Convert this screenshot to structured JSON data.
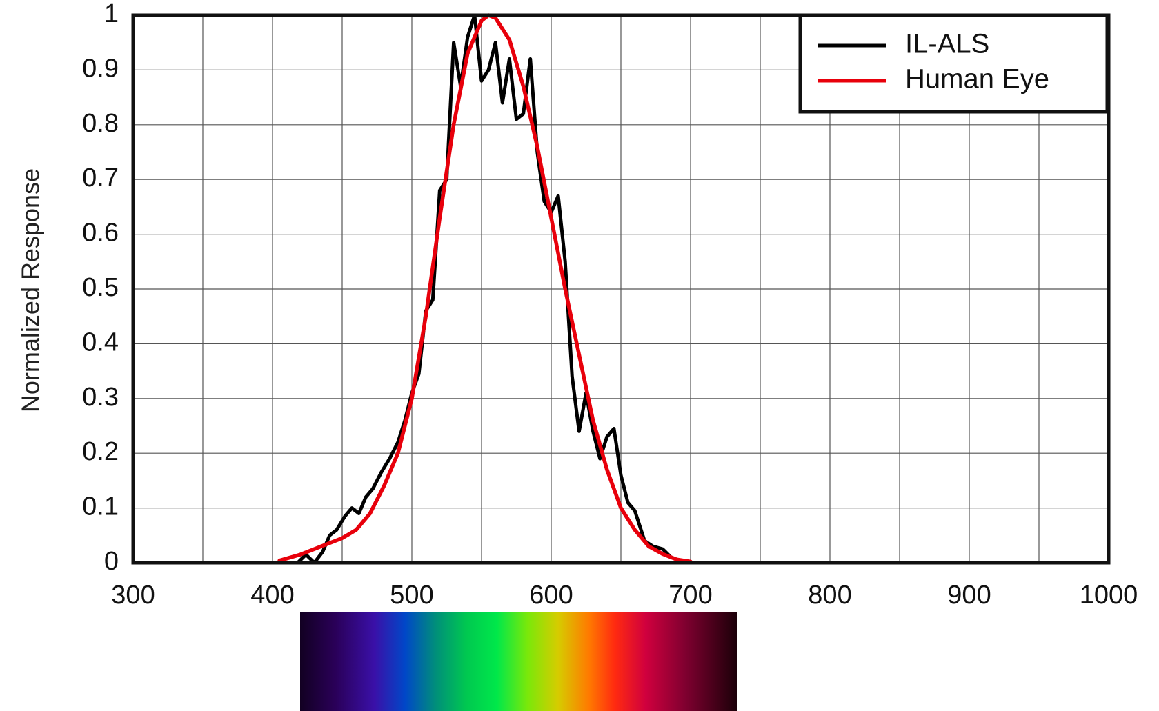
{
  "chart_data": {
    "type": "line",
    "title": "",
    "xlabel": "",
    "ylabel": "Normalized Response",
    "xlim": [
      300,
      1000
    ],
    "ylim": [
      0,
      1
    ],
    "grid": true,
    "legend": "top-right",
    "x_ticks": [
      "300",
      "400",
      "500",
      "600",
      "700",
      "800",
      "900",
      "1000"
    ],
    "y_ticks": [
      "0",
      "0.1",
      "0.2",
      "0.3",
      "0.4",
      "0.5",
      "0.6",
      "0.7",
      "0.8",
      "0.9",
      "1"
    ],
    "series": [
      {
        "name": "IL-ALS",
        "color": "#000000",
        "x": [
          418,
          424,
          430,
          436,
          441,
          446,
          452,
          457,
          462,
          467,
          472,
          478,
          484,
          490,
          495,
          500,
          505,
          510,
          515,
          520,
          525,
          530,
          535,
          540,
          545,
          550,
          555,
          560,
          565,
          570,
          575,
          580,
          585,
          590,
          595,
          600,
          605,
          610,
          615,
          620,
          625,
          630,
          635,
          640,
          645,
          650,
          655,
          660,
          667,
          673,
          680,
          686
        ],
        "y": [
          0.0,
          0.015,
          0.0,
          0.02,
          0.05,
          0.06,
          0.085,
          0.1,
          0.09,
          0.12,
          0.135,
          0.165,
          0.19,
          0.22,
          0.26,
          0.31,
          0.345,
          0.46,
          0.48,
          0.68,
          0.7,
          0.95,
          0.87,
          0.96,
          1.0,
          0.88,
          0.9,
          0.95,
          0.84,
          0.92,
          0.81,
          0.82,
          0.92,
          0.75,
          0.66,
          0.64,
          0.67,
          0.55,
          0.34,
          0.24,
          0.31,
          0.24,
          0.19,
          0.23,
          0.245,
          0.16,
          0.11,
          0.095,
          0.04,
          0.03,
          0.025,
          0.01
        ]
      },
      {
        "name": "Human Eye",
        "color": "#e8000b",
        "x": [
          405,
          420,
          435,
          450,
          460,
          470,
          480,
          490,
          500,
          510,
          520,
          530,
          540,
          550,
          555,
          560,
          570,
          580,
          590,
          600,
          610,
          620,
          630,
          640,
          650,
          660,
          670,
          680,
          690,
          700
        ],
        "y": [
          0.004,
          0.015,
          0.03,
          0.045,
          0.06,
          0.09,
          0.14,
          0.2,
          0.3,
          0.45,
          0.63,
          0.8,
          0.93,
          0.99,
          1.0,
          0.995,
          0.955,
          0.87,
          0.76,
          0.63,
          0.5,
          0.38,
          0.26,
          0.17,
          0.1,
          0.06,
          0.03,
          0.016,
          0.006,
          0.002
        ]
      }
    ]
  }
}
